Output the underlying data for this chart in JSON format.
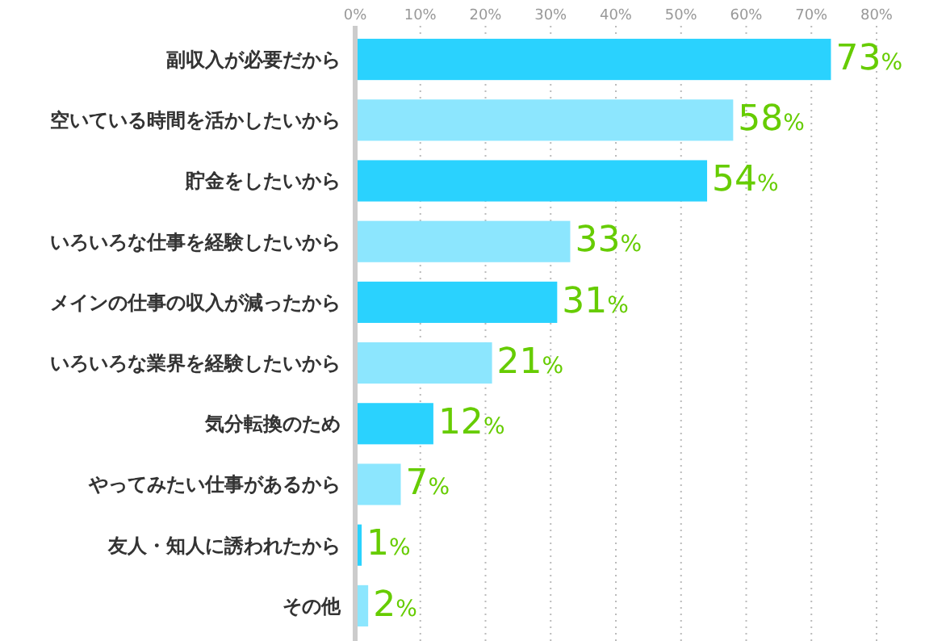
{
  "chart_data": {
    "type": "bar",
    "orientation": "horizontal",
    "categories": [
      "副収入が必要だから",
      "空いている時間を活かしたいから",
      "貯金をしたいから",
      "いろいろな仕事を経験したいから",
      "メインの仕事の収入が減ったから",
      "いろいろな業界を経験したいから",
      "気分転換のため",
      "やってみたい仕事があるから",
      "友人・知人に誘われたから",
      "その他"
    ],
    "values": [
      73,
      58,
      54,
      33,
      31,
      21,
      12,
      7,
      1,
      2
    ],
    "colors": [
      "#2ad2fe",
      "#8ce6fe",
      "#2ad2fe",
      "#8ce6fe",
      "#2ad2fe",
      "#8ce6fe",
      "#2ad2fe",
      "#8ce6fe",
      "#2ad2fe",
      "#8ce6fe"
    ],
    "value_labels": [
      "73%",
      "58%",
      "54%",
      "33%",
      "31%",
      "21%",
      "12%",
      "7%",
      "1%",
      "2%"
    ],
    "xlim": [
      0,
      80
    ],
    "xticks": [
      {
        "value": 0,
        "label": "0%"
      },
      {
        "value": 10,
        "label": "10%"
      },
      {
        "value": 20,
        "label": "20%"
      },
      {
        "value": 30,
        "label": "30%"
      },
      {
        "value": 40,
        "label": "40%"
      },
      {
        "value": 50,
        "label": "50%"
      },
      {
        "value": 60,
        "label": "60%"
      },
      {
        "value": 70,
        "label": "70%"
      },
      {
        "value": 80,
        "label": "80%"
      }
    ],
    "grid": "x"
  }
}
